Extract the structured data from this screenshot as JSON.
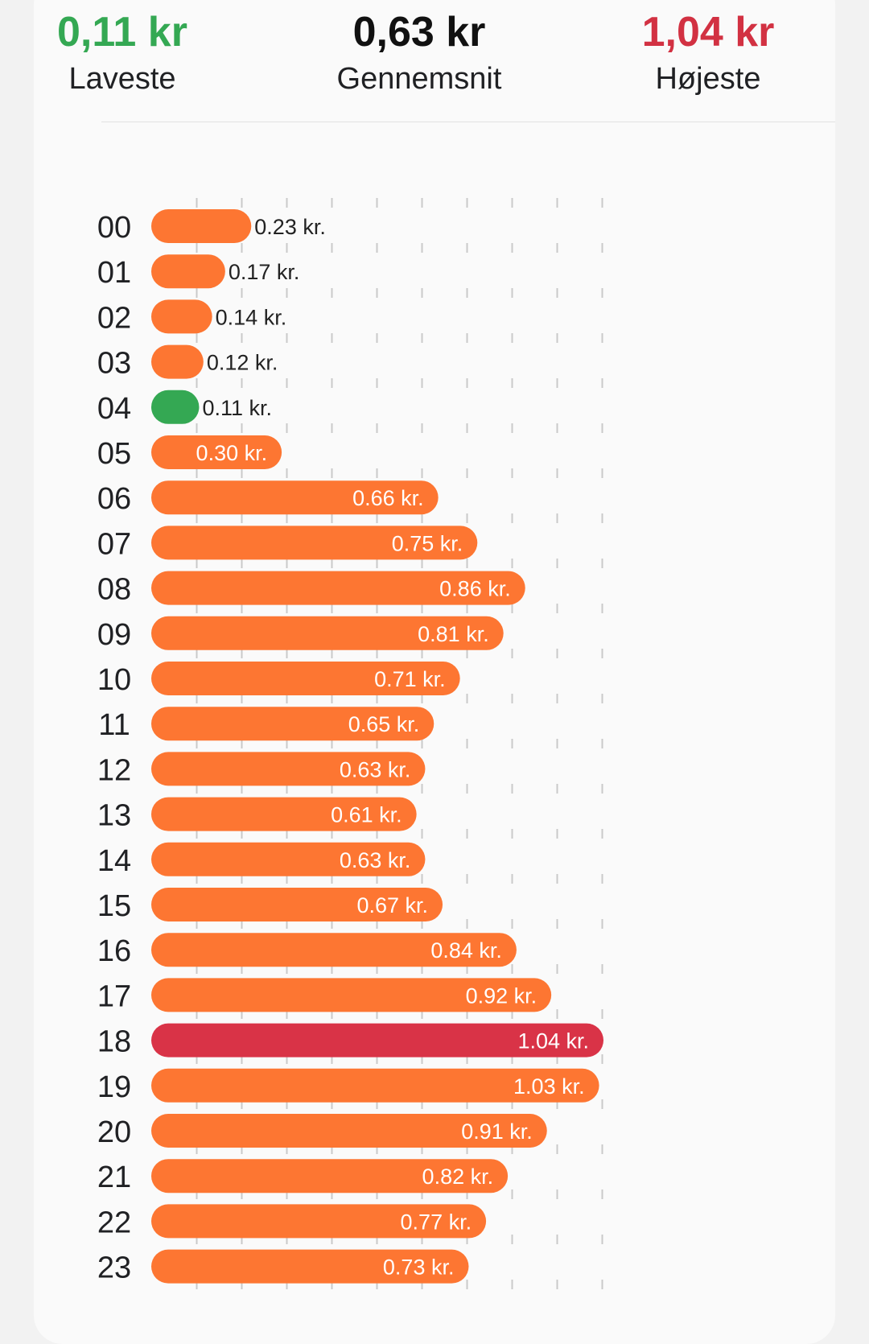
{
  "summary": {
    "lowest": {
      "value": "0,11 kr",
      "label": "Laveste",
      "color": "#34a853"
    },
    "average": {
      "value": "0,63 kr",
      "label": "Gennemsnit",
      "color": "#111111"
    },
    "highest": {
      "value": "1,04 kr",
      "label": "Højeste",
      "color": "#d23142"
    }
  },
  "colors": {
    "bar_default": "#fd7632",
    "bar_lowest": "#34a853",
    "bar_highest": "#d93347",
    "gridline": "#c9c9c9"
  },
  "chart_data": {
    "type": "bar",
    "orientation": "horizontal",
    "categories": [
      "00",
      "01",
      "02",
      "03",
      "04",
      "05",
      "06",
      "07",
      "08",
      "09",
      "10",
      "11",
      "12",
      "13",
      "14",
      "15",
      "16",
      "17",
      "18",
      "19",
      "20",
      "21",
      "22",
      "23"
    ],
    "values": [
      0.23,
      0.17,
      0.14,
      0.12,
      0.11,
      0.3,
      0.66,
      0.75,
      0.86,
      0.81,
      0.71,
      0.65,
      0.63,
      0.61,
      0.63,
      0.67,
      0.84,
      0.92,
      1.04,
      1.03,
      0.91,
      0.82,
      0.77,
      0.73
    ],
    "value_labels": [
      "0.23 kr.",
      "0.17 kr.",
      "0.14 kr.",
      "0.12 kr.",
      "0.11 kr.",
      "0.30 kr.",
      "0.66 kr.",
      "0.75 kr.",
      "0.86 kr.",
      "0.81 kr.",
      "0.71 kr.",
      "0.65 kr.",
      "0.63 kr.",
      "0.61 kr.",
      "0.63 kr.",
      "0.67 kr.",
      "0.84 kr.",
      "0.92 kr.",
      "1.04 kr.",
      "1.03 kr.",
      "0.91 kr.",
      "0.82 kr.",
      "0.77 kr.",
      "0.73 kr."
    ],
    "xlim": [
      0,
      1.04
    ],
    "grid": true,
    "lowest_index": 4,
    "highest_index": 18
  }
}
